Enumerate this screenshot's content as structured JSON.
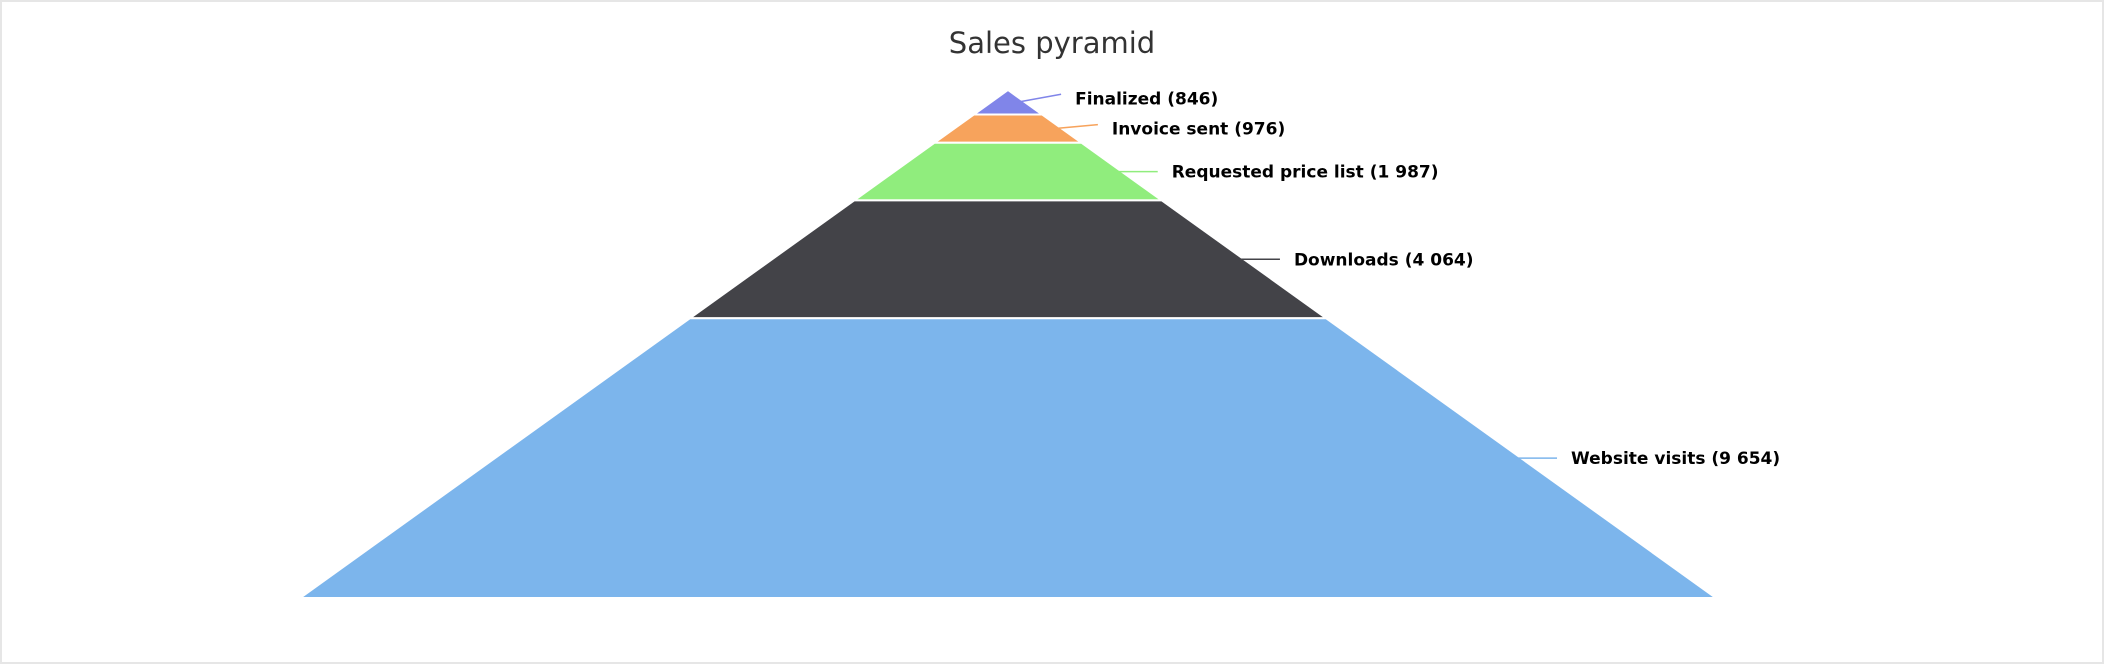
{
  "chart_data": {
    "type": "pyramid",
    "title": "Sales pyramid",
    "series": [
      {
        "name": "",
        "points": [
          {
            "label": "Finalized",
            "value": 846,
            "display": "Finalized (846)",
            "color": "#8085e9"
          },
          {
            "label": "Invoice sent",
            "value": 976,
            "display": "Invoice sent (976)",
            "color": "#f7a35c"
          },
          {
            "label": "Requested price list",
            "value": 1987,
            "display": "Requested price list (1 987)",
            "color": "#90ed7d"
          },
          {
            "label": "Downloads",
            "value": 4064,
            "display": "Downloads (4 064)",
            "color": "#434348"
          },
          {
            "label": "Website visits",
            "value": 9654,
            "display": "Website visits (9 654)",
            "color": "#7cb5ec"
          }
        ]
      }
    ],
    "legend": false,
    "grid": false,
    "labels": "right-with-connectors"
  }
}
